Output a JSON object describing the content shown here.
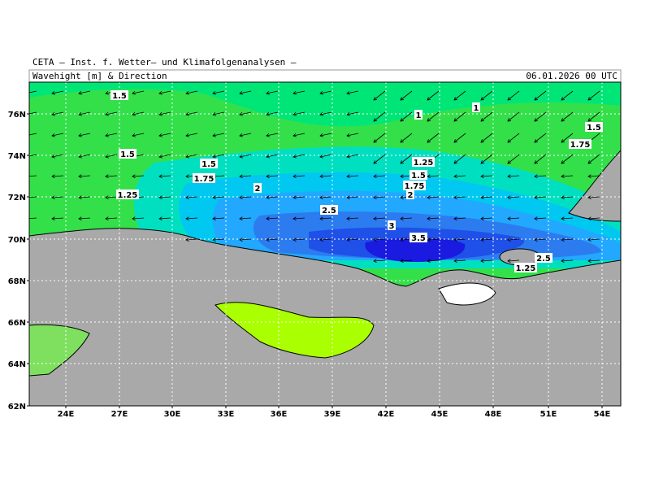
{
  "header": {
    "institute": "CETA – Inst. f. Wetter– und Klimafolgenanalysen –",
    "title": "Wavehight [m] & Direction",
    "date": "06.01.2026 00 UTC"
  },
  "map": {
    "lat_labels": [
      "76N",
      "74N",
      "72N",
      "70N",
      "68N",
      "66N",
      "64N",
      "62N"
    ],
    "lon_labels": [
      "24E",
      "27E",
      "30E",
      "33E",
      "36E",
      "39E",
      "42E",
      "45E",
      "48E",
      "51E",
      "54E"
    ],
    "contour_labels": [
      "1.5",
      "1",
      "1",
      "1.5",
      "1.75",
      "1.5",
      "1.25",
      "1.5",
      "1.5",
      "1.75",
      "1.75",
      "2",
      "2",
      "1.25",
      "2.5",
      "3",
      "3.5",
      "2.5",
      "1.25"
    ]
  }
}
